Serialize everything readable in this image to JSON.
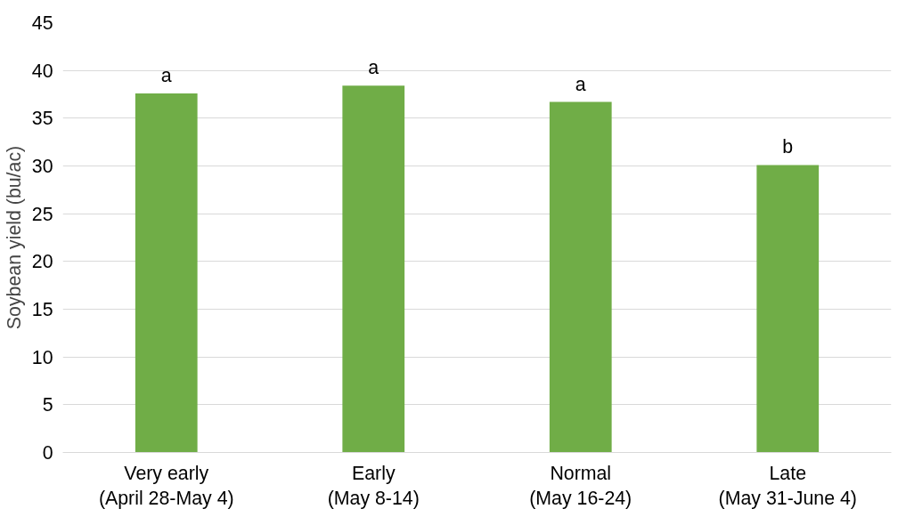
{
  "chart_data": {
    "type": "bar",
    "ylabel": "Soybean yield (bu/ac)",
    "categories": [
      "Very early\n(April 28-May 4)",
      "Early\n(May 8-14)",
      "Normal\n(May 16-24)",
      "Late\n(May 31-June 4)"
    ],
    "values": [
      37.6,
      38.4,
      36.7,
      30.1
    ],
    "color": "#70ad47",
    "ylim": [
      0,
      45
    ],
    "yticks": [
      0,
      5,
      10,
      15,
      20,
      25,
      30,
      35,
      40,
      45
    ],
    "grid": "y",
    "annotations": [
      {
        "text": "a",
        "x": "Very early\n(April 28-May 4)",
        "y": 37.6
      },
      {
        "text": "a",
        "x": "Early\n(May 8-14)",
        "y": 38.4
      },
      {
        "text": "a",
        "x": "Normal\n(May 16-24)",
        "y": 36.7
      },
      {
        "text": "b",
        "x": "Late\n(May 31-June 4)",
        "y": 30.1
      }
    ]
  }
}
